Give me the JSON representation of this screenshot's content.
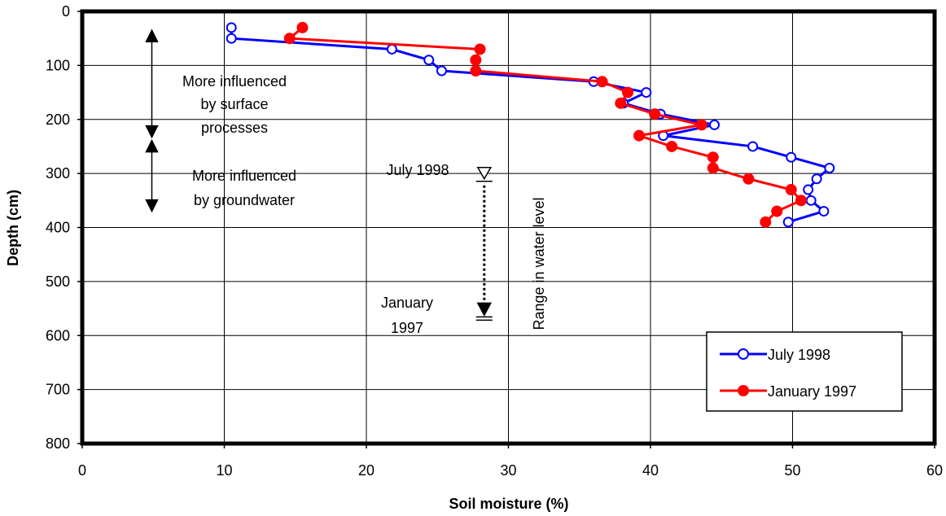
{
  "chart_data": {
    "type": "line",
    "title": "",
    "xlabel": "Soil moisture (%)",
    "ylabel": "Depth (cm)",
    "xlim": [
      0,
      60
    ],
    "ylim": [
      0,
      800
    ],
    "y_inverted": true,
    "x_ticks": [
      "0",
      "10",
      "20",
      "30",
      "40",
      "50",
      "60"
    ],
    "y_ticks": [
      "0",
      "100",
      "200",
      "300",
      "400",
      "500",
      "600",
      "700",
      "800"
    ],
    "grid": true,
    "legend_position": "bottom-right",
    "series": [
      {
        "name": "July 1998",
        "color": "#0000ff",
        "marker": "open-circle",
        "points": [
          [
            10.5,
            30
          ],
          [
            10.5,
            50
          ],
          [
            21.8,
            70
          ],
          [
            24.4,
            90
          ],
          [
            25.3,
            110
          ],
          [
            36.0,
            130
          ],
          [
            39.7,
            150
          ],
          [
            38.1,
            170
          ],
          [
            40.7,
            190
          ],
          [
            44.5,
            210
          ],
          [
            40.9,
            230
          ],
          [
            47.2,
            250
          ],
          [
            49.9,
            270
          ],
          [
            52.6,
            290
          ],
          [
            51.7,
            310
          ],
          [
            51.1,
            330
          ],
          [
            51.3,
            350
          ],
          [
            52.2,
            370
          ],
          [
            49.7,
            390
          ]
        ]
      },
      {
        "name": "January 1997",
        "color": "#ff0000",
        "marker": "filled-circle",
        "points": [
          [
            15.5,
            30
          ],
          [
            14.6,
            50
          ],
          [
            28.0,
            70
          ],
          [
            27.7,
            90
          ],
          [
            27.7,
            110
          ],
          [
            36.6,
            130
          ],
          [
            38.4,
            150
          ],
          [
            37.9,
            170
          ],
          [
            40.3,
            190
          ],
          [
            43.6,
            210
          ],
          [
            39.2,
            230
          ],
          [
            41.5,
            250
          ],
          [
            44.4,
            270
          ],
          [
            44.4,
            290
          ],
          [
            46.9,
            310
          ],
          [
            49.9,
            330
          ],
          [
            50.6,
            350
          ],
          [
            48.9,
            370
          ],
          [
            48.1,
            390
          ]
        ]
      }
    ],
    "annotations": {
      "surface_lines": [
        "More influenced",
        "by surface",
        "processes"
      ],
      "groundwater_lines": [
        "More influenced",
        "by groundwater"
      ],
      "water_level_label": "Range in water level",
      "water_level_top_label": "July 1998",
      "water_level_bottom_lines": [
        "January",
        "1997"
      ],
      "water_level_x": 28.3,
      "water_level_top": 310,
      "water_level_bottom": 570,
      "surface_arrow_x": 4.9,
      "surface_arrow_range": [
        35,
        245
      ],
      "groundwater_arrow_range": [
        245,
        370
      ]
    }
  }
}
